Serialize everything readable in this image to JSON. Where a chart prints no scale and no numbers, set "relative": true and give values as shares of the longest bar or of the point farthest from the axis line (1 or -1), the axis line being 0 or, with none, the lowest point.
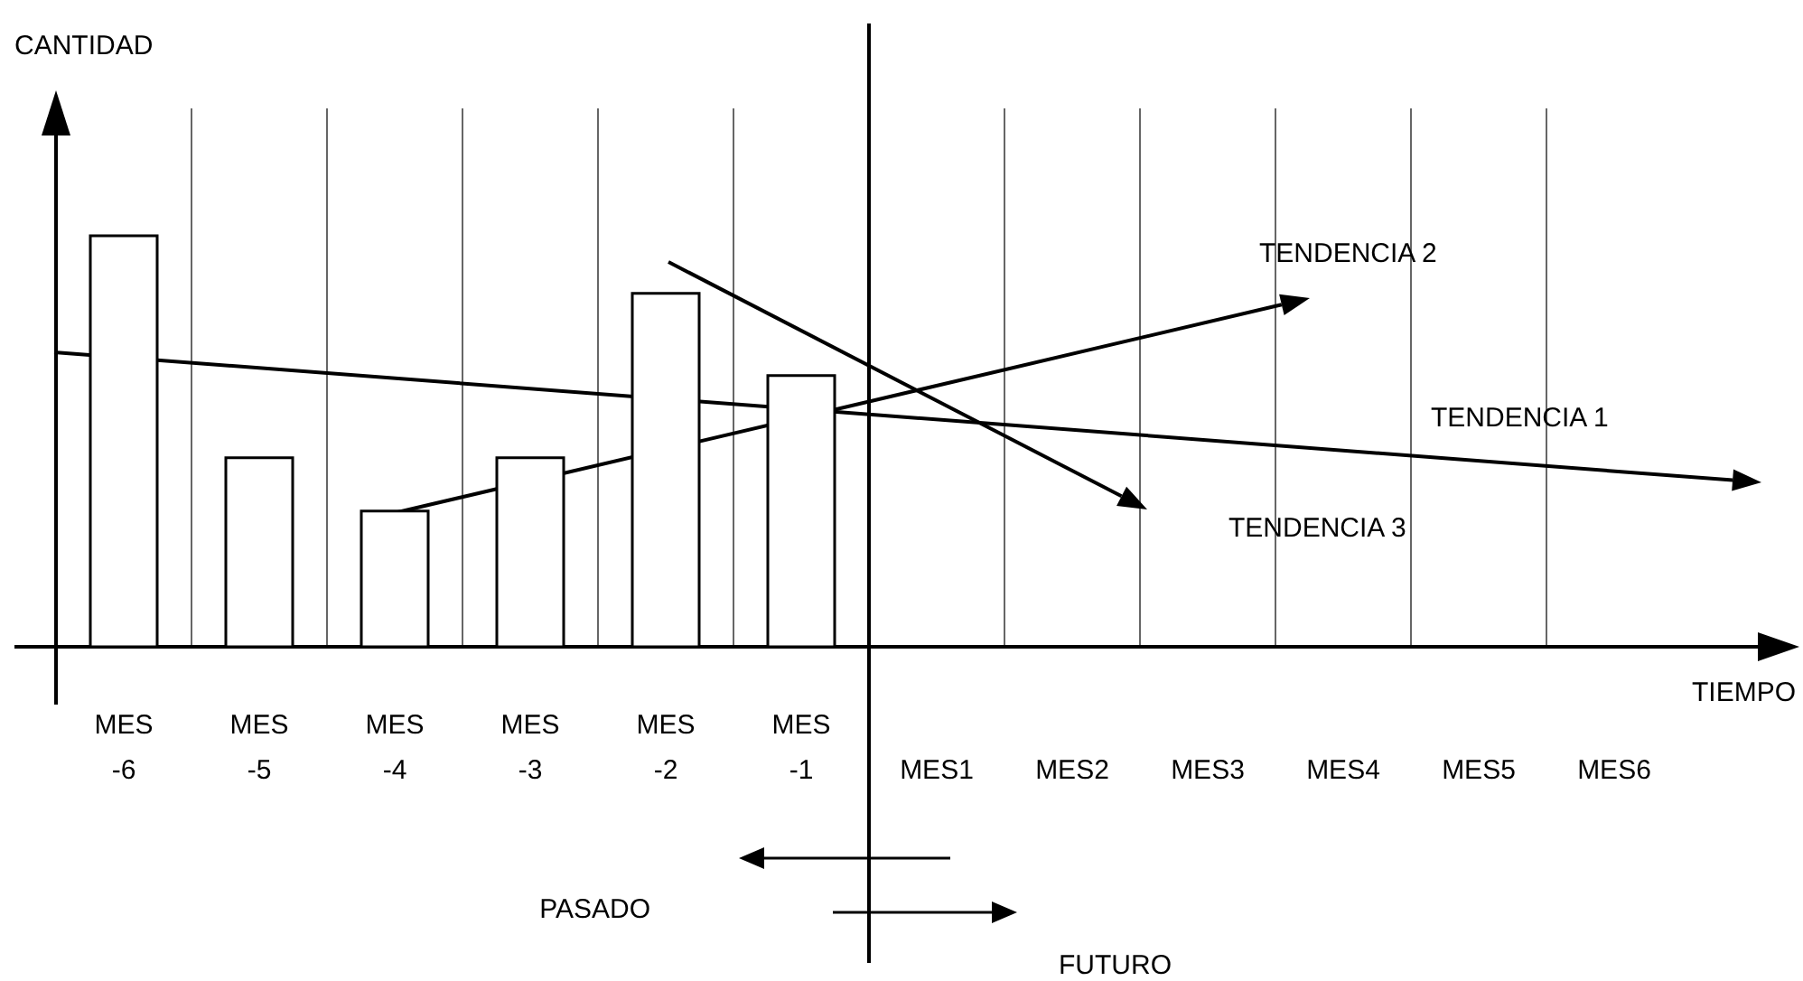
{
  "chart_data": {
    "type": "bar",
    "xlabel": "TIEMPO",
    "relative": true,
    "grid": "x",
    "categories": [
      "MES -6",
      "MES -5",
      "MES -4",
      "MES -3",
      "MES -2",
      "MES -1",
      "MES1",
      "MES2",
      "MES3",
      "MES4",
      "MES5",
      "MES6"
    ],
    "values": [
      1,
      0.46,
      0.33,
      0.46,
      0.86,
      0.66,
      null,
      null,
      null,
      null,
      null,
      null
    ],
    "color": "#ffffff",
    "annotations": [
      "CANTIDAD",
      "TENDENCIA 1",
      "TENDENCIA 2",
      "TENDENCIA 3",
      "PASADO",
      "FUTURO"
    ]
  }
}
